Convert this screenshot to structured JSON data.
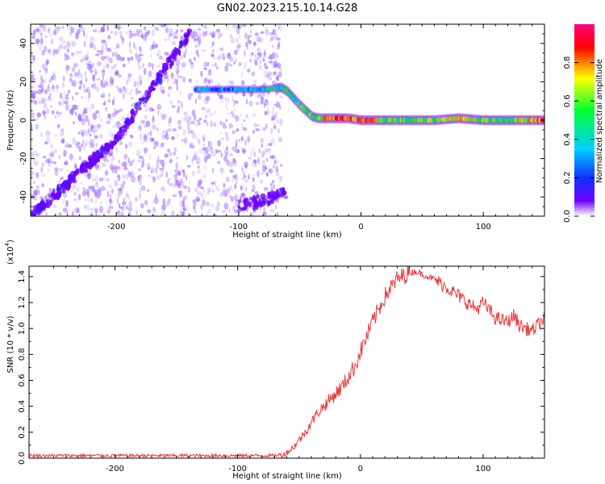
{
  "figure": {
    "title": "GN02.2023.215.10.14.G28"
  },
  "colors": {
    "snr_line": "#e8393a",
    "spectrogram_scatter": "#8e4dff",
    "colorbar_stops": [
      "#ffffff",
      "#7000ff",
      "#1030ff",
      "#00d0ff",
      "#00ff30",
      "#ffff00",
      "#ff0000",
      "#ff0080"
    ]
  },
  "chart_data": [
    {
      "type": "heatmap",
      "panel": "spectrogram",
      "xlabel": "Height of straight line (km)",
      "ylabel": "Frequency (Hz)",
      "xlim": [
        -270,
        150
      ],
      "ylim": [
        -50,
        50
      ],
      "x_ticks": [
        -200,
        -100,
        0,
        100
      ],
      "x_tick_labels": [
        "-200",
        "-100",
        "0",
        "100"
      ],
      "y_ticks": [
        40,
        20,
        0,
        -20,
        -40
      ],
      "y_tick_labels": [
        "40",
        "20",
        "0",
        "-20",
        "-40"
      ],
      "noise_region_x": [
        -270,
        -65
      ],
      "diagonal_streak": {
        "x": [
          -270,
          -200,
          -140
        ],
        "y": [
          -50,
          -10,
          45
        ]
      },
      "lower_streak": {
        "x": [
          -100,
          -60
        ],
        "y": [
          -45,
          -38
        ]
      },
      "signal_track": {
        "x": [
          -135,
          -100,
          -80,
          -65,
          -60,
          -50,
          -40,
          -35,
          -25,
          -10,
          0,
          20,
          40,
          60,
          80,
          100,
          120,
          150
        ],
        "y": [
          16,
          16,
          16,
          17,
          15,
          8,
          2,
          1,
          1,
          1,
          0,
          0,
          0,
          0,
          1,
          0,
          0,
          0
        ],
        "amplitude": [
          0.3,
          0.3,
          0.4,
          0.45,
          0.55,
          0.5,
          0.6,
          0.55,
          0.85,
          0.75,
          0.85,
          0.6,
          0.55,
          0.6,
          0.75,
          0.6,
          0.55,
          0.85
        ]
      },
      "colorbar": {
        "label": "Normalized spectral amplitude",
        "range": [
          0.0,
          1.0
        ],
        "ticks": [
          0.0,
          0.2,
          0.4,
          0.6,
          0.8
        ],
        "tick_labels": [
          "0.0",
          "0.2",
          "0.4",
          "0.6",
          "0.8"
        ]
      }
    },
    {
      "type": "line",
      "panel": "snr",
      "series": [
        {
          "x": [
            -270,
            -150,
            -70,
            -62,
            -55,
            -45,
            -35,
            -25,
            -15,
            -5,
            0,
            10,
            20,
            30,
            40,
            45,
            50,
            60,
            70,
            80,
            90,
            95,
            100,
            110,
            120,
            125,
            130,
            140,
            150
          ],
          "y": [
            0.02,
            0.02,
            0.02,
            0.03,
            0.08,
            0.2,
            0.35,
            0.45,
            0.55,
            0.7,
            0.82,
            1.05,
            1.25,
            1.38,
            1.43,
            1.44,
            1.42,
            1.38,
            1.32,
            1.25,
            1.18,
            1.15,
            1.2,
            1.08,
            1.05,
            1.1,
            1.02,
            0.98,
            1.08
          ]
        }
      ],
      "xlabel": "Height of straight line (km)",
      "ylabel": "SNR (10 * v/v)",
      "y_multiplier": "(x10",
      "y_multiplier_exp": "4",
      "y_multiplier_close": ")",
      "xlim": [
        -270,
        150
      ],
      "ylim": [
        0.0,
        1.48
      ],
      "x_ticks": [
        -200,
        -100,
        0,
        100
      ],
      "x_tick_labels": [
        "-200",
        "-100",
        "0",
        "100"
      ],
      "y_ticks": [
        0.0,
        0.2,
        0.4,
        0.6,
        0.8,
        1.0,
        1.2,
        1.4
      ],
      "y_tick_labels": [
        "0.0",
        "0.2",
        "0.4",
        "0.6",
        "0.8",
        "1.0",
        "1.2",
        "1.4"
      ]
    }
  ]
}
